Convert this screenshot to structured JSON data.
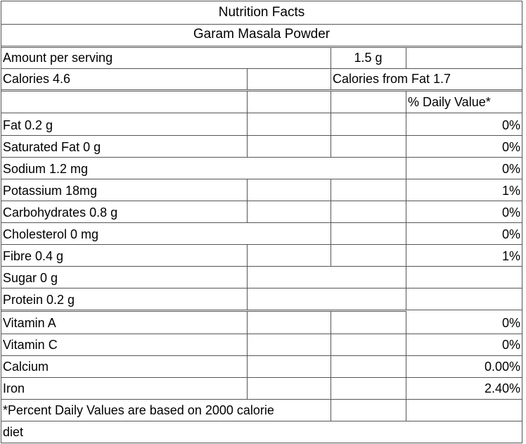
{
  "title": "Nutrition Facts",
  "product": "Garam Masala Powder",
  "serving": {
    "label": "Amount per serving",
    "value": "1.5 g"
  },
  "calories": {
    "label": "Calories 4.6",
    "from_fat": "Calories from Fat 1.7"
  },
  "dv_header": "% Daily Value*",
  "nutrients": [
    {
      "name": "Fat 0.2  g",
      "dv": "0%"
    },
    {
      "name": "Saturated Fat 0 g",
      "dv": "0%"
    },
    {
      "name": "Sodium 1.2 mg",
      "dv": "0%"
    },
    {
      "name": "Potassium 18mg",
      "dv": "1%"
    },
    {
      "name": "Carbohydrates 0.8 g",
      "dv": "0%"
    },
    {
      "name": "Cholesterol 0 mg",
      "dv": "0%"
    },
    {
      "name": "Fibre 0.4 g",
      "dv": "1%"
    },
    {
      "name": "Sugar 0  g",
      "dv": ""
    },
    {
      "name": "Protein 0.2 g",
      "dv": ""
    },
    {
      "name": "Vitamin A",
      "dv": "0%"
    },
    {
      "name": "Vitamin C",
      "dv": "0%"
    },
    {
      "name": "Calcium",
      "dv": "0.00%"
    },
    {
      "name": "Iron",
      "dv": "2.40%"
    }
  ],
  "footnote": {
    "line1": "*Percent Daily Values are based on 2000 calorie",
    "line2": "diet"
  }
}
